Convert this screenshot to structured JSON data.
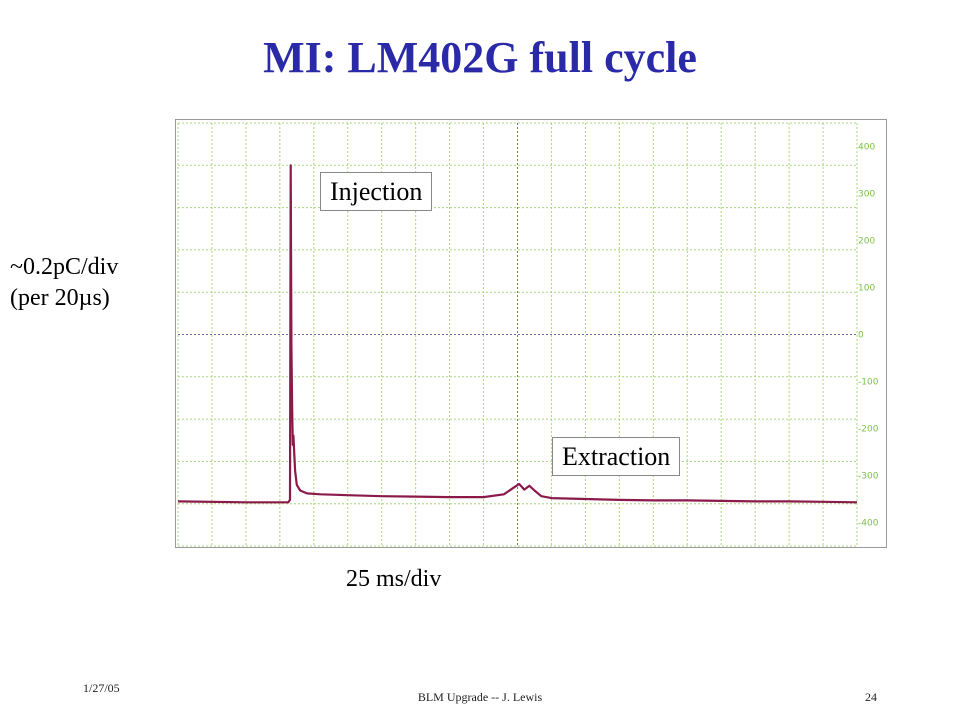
{
  "slide": {
    "title": "MI: LM402G full cycle",
    "y_axis_label_line1": "~0.2pC/div",
    "y_axis_label_line2": "(per 20µs)",
    "x_axis_label": "25 ms/div",
    "footer_date": "1/27/05",
    "footer_center": "BLM Upgrade -- J. Lewis",
    "footer_page": "24"
  },
  "chart_data": {
    "type": "line",
    "title": "MI: LM402G full cycle",
    "xlabel": "25 ms/div",
    "ylabel": "~0.2pC/div (per 20µs)",
    "x_divisions": 20,
    "y_divisions": 10,
    "xlim": [
      0,
      20
    ],
    "ylim": [
      -450,
      450
    ],
    "grid": true,
    "y_ticks": [
      400,
      300,
      200,
      100,
      0,
      -100,
      -200,
      -300,
      -400
    ],
    "annotations": [
      {
        "text": "Injection",
        "x_div": 4.1
      },
      {
        "text": "Extraction",
        "x_div": 10.0
      }
    ],
    "series": [
      {
        "color": "#8b1a4a",
        "x": [
          0,
          2,
          3.25,
          3.3,
          3.32,
          3.34,
          3.36,
          3.38,
          3.4,
          3.45,
          3.5,
          3.6,
          3.8,
          4.2,
          5,
          6,
          7,
          8,
          9,
          9.6,
          9.9,
          10.05,
          10.2,
          10.35,
          10.5,
          10.7,
          11,
          12,
          13,
          14,
          15,
          16,
          17,
          18,
          19,
          20
        ],
        "values": [
          -355,
          -357,
          -357,
          -352,
          360,
          -20,
          -150,
          -235,
          -215,
          -290,
          -320,
          -332,
          -338,
          -340,
          -342,
          -344,
          -345,
          -346,
          -346,
          -340,
          -325,
          -318,
          -330,
          -322,
          -332,
          -344,
          -348,
          -350,
          -352,
          -353,
          -353,
          -354,
          -355,
          -355,
          -356,
          -357
        ]
      }
    ]
  }
}
